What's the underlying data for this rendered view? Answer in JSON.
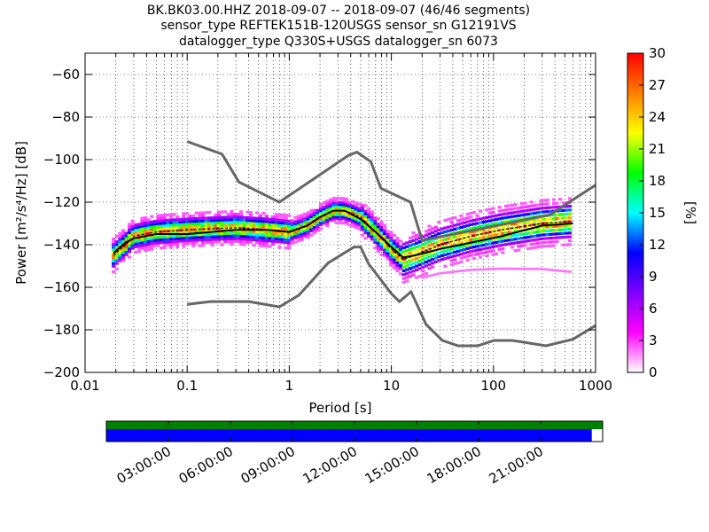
{
  "title_lines": [
    "BK.BK03.00.HHZ   2018-09-07 -- 2018-09-07  (46/46 segments)",
    "sensor_type REFTEK151B-120USGS sensor_sn G12191VS",
    "datalogger_type Q330S+USGS datalogger_sn 6073"
  ],
  "chart_data": {
    "type": "heatmap",
    "xlabel": "Period [s]",
    "ylabel": "Power [m²/s⁴/Hz] [dB]",
    "x_scale": "log",
    "xlim": [
      0.01,
      1000
    ],
    "ylim": [
      -200,
      -50
    ],
    "x_ticks": [
      {
        "value": 0.01,
        "label": "0.01"
      },
      {
        "value": 0.1,
        "label": "0.1"
      },
      {
        "value": 1,
        "label": "1"
      },
      {
        "value": 10,
        "label": "10"
      },
      {
        "value": 100,
        "label": "100"
      },
      {
        "value": 1000,
        "label": "1000"
      }
    ],
    "y_ticks": [
      {
        "value": -60,
        "label": "−60"
      },
      {
        "value": -80,
        "label": "−80"
      },
      {
        "value": -100,
        "label": "−100"
      },
      {
        "value": -120,
        "label": "−120"
      },
      {
        "value": -140,
        "label": "−140"
      },
      {
        "value": -160,
        "label": "−160"
      },
      {
        "value": -180,
        "label": "−180"
      },
      {
        "value": -200,
        "label": "−200"
      }
    ],
    "grid": true,
    "colorbar": {
      "label": "[%]",
      "min": 0,
      "max": 30,
      "ticks": [
        "0",
        "3",
        "6",
        "9",
        "12",
        "15",
        "18",
        "21",
        "24",
        "27",
        "30"
      ],
      "colors": [
        "#ffffff",
        "#ff00ff",
        "#7f00ff",
        "#0000ff",
        "#00ffff",
        "#00ff00",
        "#ffff00",
        "#ff7f00",
        "#ff0000"
      ]
    },
    "nhnm": [
      [
        0.1,
        -91.5
      ],
      [
        0.22,
        -97.4
      ],
      [
        0.32,
        -110.5
      ],
      [
        0.8,
        -120
      ],
      [
        3.8,
        -98
      ],
      [
        4.6,
        -96.5
      ],
      [
        6.3,
        -101
      ],
      [
        7.9,
        -113.5
      ],
      [
        15.4,
        -120
      ],
      [
        20,
        -138
      ],
      [
        354,
        -126
      ],
      [
        1000,
        -112
      ]
    ],
    "nlnm": [
      [
        0.1,
        -168
      ],
      [
        0.17,
        -166.7
      ],
      [
        0.4,
        -166.7
      ],
      [
        0.8,
        -169.2
      ],
      [
        1.24,
        -163.7
      ],
      [
        2.4,
        -148.6
      ],
      [
        4.3,
        -141.1
      ],
      [
        5,
        -141.1
      ],
      [
        6,
        -149
      ],
      [
        10,
        -163
      ],
      [
        12,
        -166.7
      ],
      [
        15.6,
        -162.1
      ],
      [
        21.9,
        -177.5
      ],
      [
        31.6,
        -185
      ],
      [
        45,
        -187.5
      ],
      [
        70,
        -187.5
      ],
      [
        101,
        -185
      ],
      [
        154,
        -185
      ],
      [
        328,
        -187.5
      ],
      [
        600,
        -184.4
      ],
      [
        1000,
        -178
      ]
    ],
    "mean_curve": [
      [
        0.019,
        -144
      ],
      [
        0.025,
        -139
      ],
      [
        0.03,
        -137
      ],
      [
        0.05,
        -135
      ],
      [
        0.1,
        -135
      ],
      [
        0.3,
        -133
      ],
      [
        0.6,
        -133
      ],
      [
        1,
        -134
      ],
      [
        1.5,
        -131
      ],
      [
        2,
        -127
      ],
      [
        2.7,
        -124
      ],
      [
        3.5,
        -124
      ],
      [
        5,
        -128
      ],
      [
        7,
        -134
      ],
      [
        10,
        -141
      ],
      [
        13,
        -146
      ],
      [
        17,
        -145
      ],
      [
        30,
        -142
      ],
      [
        60,
        -139
      ],
      [
        120,
        -136
      ],
      [
        300,
        -131
      ],
      [
        600,
        -130
      ]
    ],
    "mode_curve": [
      [
        0.019,
        -145
      ],
      [
        0.025,
        -140
      ],
      [
        0.03,
        -136
      ],
      [
        0.05,
        -134
      ],
      [
        0.1,
        -133
      ],
      [
        0.3,
        -132
      ],
      [
        0.6,
        -133
      ],
      [
        1,
        -134
      ],
      [
        1.5,
        -131
      ],
      [
        2,
        -127
      ],
      [
        2.7,
        -124
      ],
      [
        3.5,
        -124
      ],
      [
        5,
        -127
      ],
      [
        7,
        -134
      ],
      [
        10,
        -142
      ],
      [
        13,
        -147
      ],
      [
        17,
        -145
      ],
      [
        30,
        -140
      ],
      [
        60,
        -136
      ],
      [
        120,
        -133
      ],
      [
        300,
        -130
      ],
      [
        600,
        -129
      ]
    ]
  },
  "timeline": {
    "tick_labels": [
      "03:00:00",
      "06:00:00",
      "09:00:00",
      "12:00:00",
      "15:00:00",
      "18:00:00",
      "21:00:00"
    ],
    "data_color": "#008000",
    "coverage_color": "#0000ff",
    "coverage_fraction": 0.978
  }
}
